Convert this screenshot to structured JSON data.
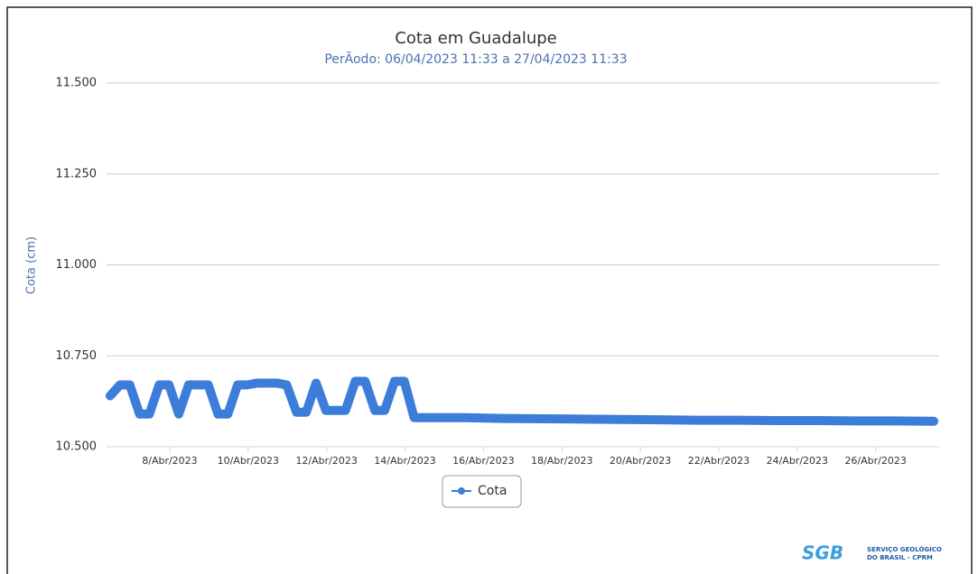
{
  "chart_data": {
    "type": "line",
    "title": "Cota em Guadalupe",
    "subtitle": "PerÃodo: 06/04/2023 11:33 a 27/04/2023 11:33",
    "y_label": "Cota (cm)",
    "x": [
      "2023-04-06 11:33",
      "2023-04-06 17:33",
      "2023-04-06 23:33",
      "2023-04-07 05:33",
      "2023-04-07 11:33",
      "2023-04-07 17:33",
      "2023-04-07 23:33",
      "2023-04-08 05:33",
      "2023-04-08 11:33",
      "2023-04-08 17:33",
      "2023-04-08 23:33",
      "2023-04-09 05:33",
      "2023-04-09 11:33",
      "2023-04-09 17:33",
      "2023-04-09 23:33",
      "2023-04-10 05:33",
      "2023-04-10 11:33",
      "2023-04-10 17:33",
      "2023-04-10 23:33",
      "2023-04-11 05:33",
      "2023-04-11 11:33",
      "2023-04-11 17:33",
      "2023-04-11 23:33",
      "2023-04-12 05:33",
      "2023-04-12 11:33",
      "2023-04-12 17:33",
      "2023-04-12 23:33",
      "2023-04-13 05:33",
      "2023-04-13 11:33",
      "2023-04-13 17:33",
      "2023-04-13 23:33",
      "2023-04-14 05:33",
      "2023-04-15 11:33",
      "2023-04-16 11:33",
      "2023-04-17 11:33",
      "2023-04-18 11:33",
      "2023-04-19 11:33",
      "2023-04-20 11:33",
      "2023-04-21 11:33",
      "2023-04-22 11:33",
      "2023-04-23 11:33",
      "2023-04-24 11:33",
      "2023-04-25 11:33",
      "2023-04-26 11:33",
      "2023-04-27 11:33"
    ],
    "series": [
      {
        "name": "Cota",
        "color": "#3b7dd8",
        "values": [
          10.64,
          10.67,
          10.67,
          10.59,
          10.59,
          10.67,
          10.67,
          10.59,
          10.67,
          10.67,
          10.67,
          10.59,
          10.59,
          10.67,
          10.67,
          10.675,
          10.675,
          10.675,
          10.67,
          10.595,
          10.595,
          10.675,
          10.6,
          10.6,
          10.6,
          10.68,
          10.68,
          10.6,
          10.6,
          10.68,
          10.68,
          10.58,
          10.58,
          10.578,
          10.577,
          10.576,
          10.575,
          10.574,
          10.573,
          10.573,
          10.572,
          10.572,
          10.571,
          10.571,
          10.57
        ]
      }
    ],
    "xlim": [
      "2023-04-06 11:33",
      "2023-04-27 11:33"
    ],
    "xticks": [
      {
        "value": "2023-04-08 00:00",
        "label": "8/Abr/2023"
      },
      {
        "value": "2023-04-10 00:00",
        "label": "10/Abr/2023"
      },
      {
        "value": "2023-04-12 00:00",
        "label": "12/Abr/2023"
      },
      {
        "value": "2023-04-14 00:00",
        "label": "14/Abr/2023"
      },
      {
        "value": "2023-04-16 00:00",
        "label": "16/Abr/2023"
      },
      {
        "value": "2023-04-18 00:00",
        "label": "18/Abr/2023"
      },
      {
        "value": "2023-04-20 00:00",
        "label": "20/Abr/2023"
      },
      {
        "value": "2023-04-22 00:00",
        "label": "22/Abr/2023"
      },
      {
        "value": "2023-04-24 00:00",
        "label": "24/Abr/2023"
      },
      {
        "value": "2023-04-26 00:00",
        "label": "26/Abr/2023"
      }
    ],
    "ylim": [
      10.5,
      11.5
    ],
    "yticks": [
      {
        "value": 10.5,
        "label": "10.500"
      },
      {
        "value": 10.75,
        "label": "10.750"
      },
      {
        "value": 11.0,
        "label": "11.000"
      },
      {
        "value": 11.25,
        "label": "11.250"
      },
      {
        "value": 11.5,
        "label": "11.500"
      }
    ],
    "grid": true,
    "legend": "bottom"
  },
  "logo": {
    "text": "SGB",
    "lines": [
      "SERVIÇO GEOLÓGICO",
      "DO BRASIL - CPRM"
    ]
  }
}
